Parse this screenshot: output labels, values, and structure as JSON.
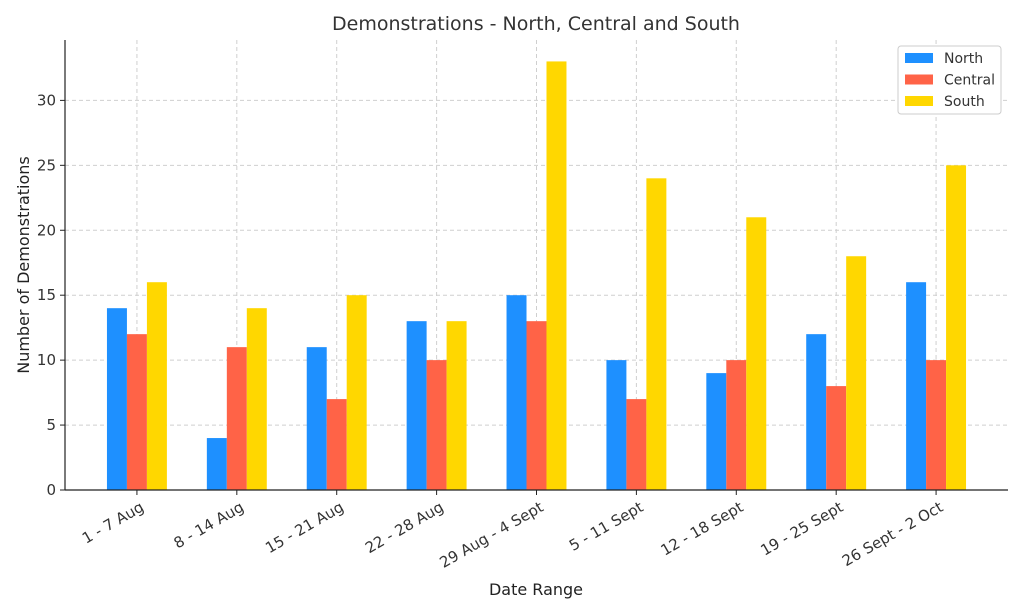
{
  "chart_data": {
    "type": "bar",
    "title": "Demonstrations - North, Central and South",
    "xlabel": "Date Range",
    "ylabel": "Number of Demonstrations",
    "categories": [
      "1 - 7 Aug",
      "8 - 14 Aug",
      "15 - 21 Aug",
      "22 - 28 Aug",
      "29 Aug - 4 Sept",
      "5 - 11 Sept",
      "12 - 18 Sept",
      "19 - 25 Sept",
      "26 Sept - 2 Oct"
    ],
    "series": [
      {
        "name": "North",
        "color": "#1E90FF",
        "values": [
          14,
          4,
          11,
          13,
          15,
          10,
          9,
          12,
          16
        ]
      },
      {
        "name": "Central",
        "color": "#FF6347",
        "values": [
          12,
          11,
          7,
          10,
          13,
          7,
          10,
          8,
          10
        ]
      },
      {
        "name": "South",
        "color": "#FFD700",
        "values": [
          16,
          14,
          15,
          13,
          33,
          24,
          21,
          18,
          25
        ]
      }
    ],
    "ylim": [
      0,
      34.65
    ],
    "yticks": [
      0,
      5,
      10,
      15,
      20,
      25,
      30
    ],
    "grid": true,
    "legend": "top-right"
  }
}
